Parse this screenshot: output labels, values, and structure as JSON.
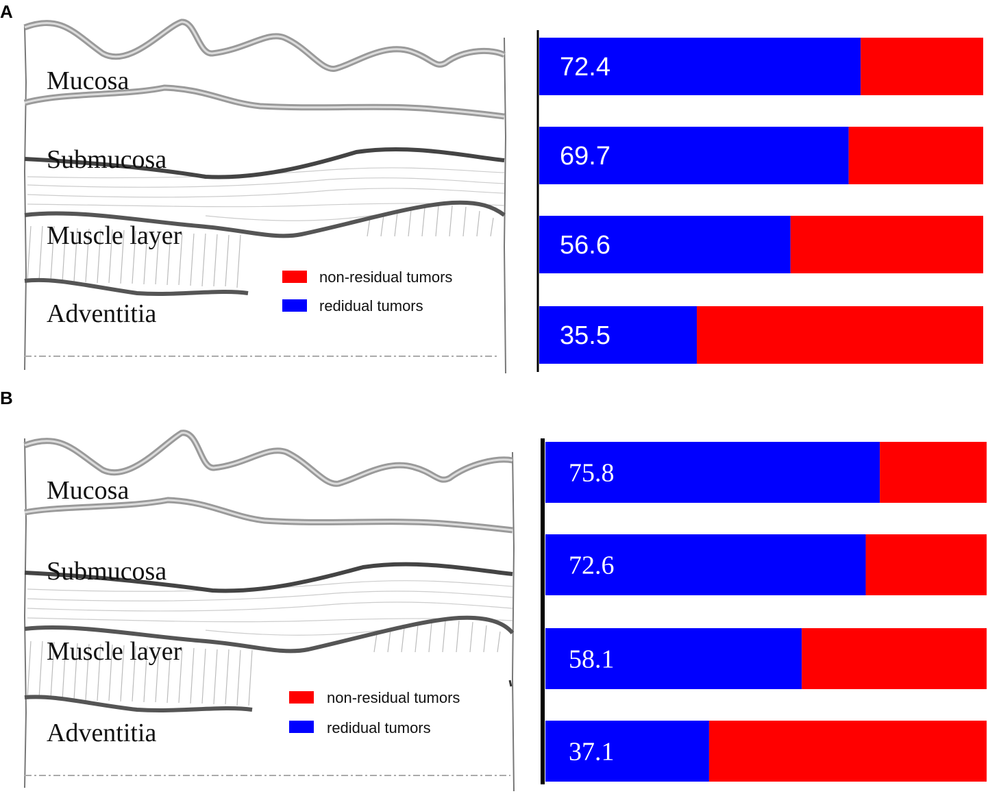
{
  "panels": [
    {
      "letter": "A",
      "layers": [
        "Mucosa",
        "Submucosa",
        "Muscle layer",
        "Adventitia"
      ],
      "legend": [
        {
          "label": "non-residual tumors",
          "color": "#ff0000"
        },
        {
          "label": "redidual tumors",
          "color": "#0000ff"
        }
      ]
    },
    {
      "letter": "B",
      "layers": [
        "Mucosa",
        "Submucosa",
        "Muscle layer",
        "Adventitia"
      ],
      "legend": [
        {
          "label": "non-residual tumors",
          "color": "#ff0000"
        },
        {
          "label": "redidual tumors",
          "color": "#0000ff"
        }
      ]
    }
  ],
  "chart_data": [
    {
      "type": "bar",
      "orientation": "horizontal-stacked-100",
      "title": "",
      "categories": [
        "Mucosa",
        "Submucosa",
        "Muscle layer",
        "Adventitia"
      ],
      "series": [
        {
          "name": "redidual tumors",
          "color": "#0000ff",
          "values": [
            72.4,
            69.7,
            56.6,
            35.5
          ]
        },
        {
          "name": "non-residual tumors",
          "color": "#ff0000",
          "values": [
            27.6,
            30.3,
            43.4,
            64.5
          ]
        }
      ],
      "data_labels": [
        "72.4",
        "69.7",
        "56.6",
        "35.5"
      ],
      "xlim": [
        0,
        100
      ],
      "legend": "left, over schematic"
    },
    {
      "type": "bar",
      "orientation": "horizontal-stacked-100",
      "title": "",
      "categories": [
        "Mucosa",
        "Submucosa",
        "Muscle layer",
        "Adventitia"
      ],
      "series": [
        {
          "name": "redidual tumors",
          "color": "#0000ff",
          "values": [
            75.8,
            72.6,
            58.1,
            37.1
          ]
        },
        {
          "name": "non-residual tumors",
          "color": "#ff0000",
          "values": [
            24.2,
            27.4,
            41.9,
            62.9
          ]
        }
      ],
      "data_labels": [
        "75.8",
        "72.6",
        "58.1",
        "37.1"
      ],
      "xlim": [
        0,
        100
      ],
      "legend": "left, over schematic"
    }
  ]
}
